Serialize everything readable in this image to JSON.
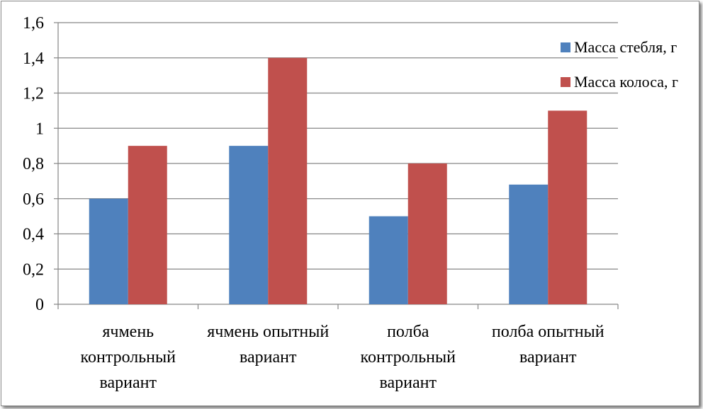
{
  "chart_data": {
    "type": "bar",
    "title": "",
    "xlabel": "",
    "ylabel": "",
    "ylim": [
      0,
      1.6
    ],
    "yticks": [
      "0",
      "0,2",
      "0,4",
      "0,6",
      "0,8",
      "1",
      "1,2",
      "1,4",
      "1,6"
    ],
    "grid": true,
    "legend_position": "right",
    "categories": [
      [
        "ячмень",
        "контрольный",
        "вариант"
      ],
      [
        "ячмень опытный",
        "вариант"
      ],
      [
        "полба",
        "контрольный",
        "вариант"
      ],
      [
        "полба опытный",
        "вариант"
      ]
    ],
    "series": [
      {
        "name": "Масса стебля, г",
        "color": "#4f81bd",
        "values": [
          0.6,
          0.9,
          0.5,
          0.68
        ]
      },
      {
        "name": "Масса колоса, г",
        "color": "#c0504d",
        "values": [
          0.9,
          1.4,
          0.8,
          1.1
        ]
      }
    ]
  }
}
